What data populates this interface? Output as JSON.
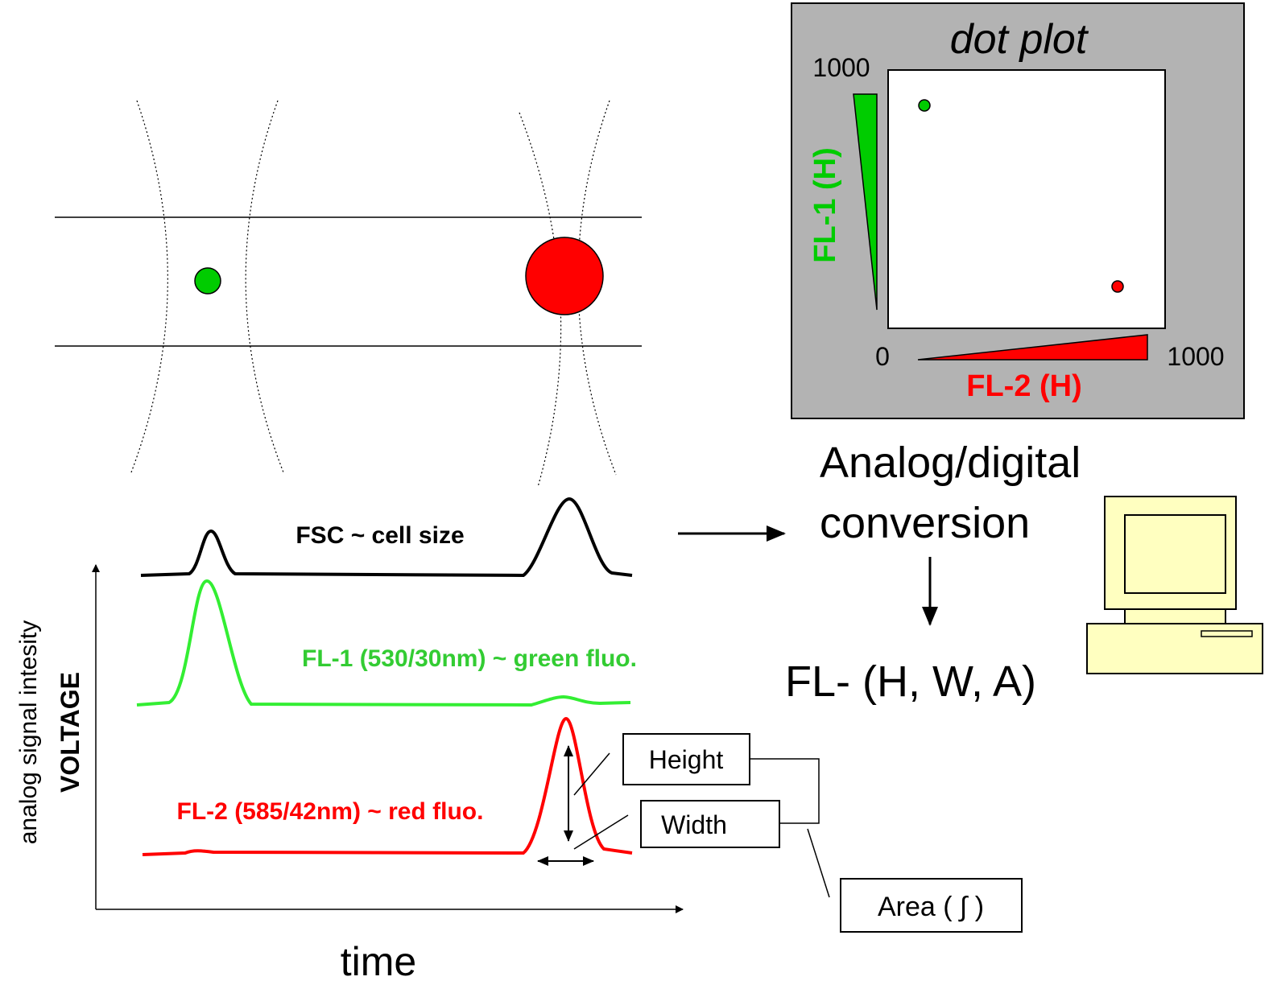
{
  "dot_plot": {
    "title": "dot plot",
    "y_max_label": "1000",
    "x_min_label": "0",
    "x_max_label": "1000",
    "y_axis_label": "FL-1 (H)",
    "x_axis_label": "FL-2 (H)"
  },
  "conversion": {
    "lines": [
      "Analog/digital",
      "conversion"
    ],
    "output": "FL- (H, W, A)"
  },
  "signals": {
    "fsc": "FSC ~ cell size",
    "fl1": "FL-1 (530/30nm) ~ green fluo.",
    "fl2": "FL-2 (585/42nm) ~ red fluo."
  },
  "parameters": {
    "height": "Height",
    "width": "Width",
    "area": "Area ( ∫ )"
  },
  "axes": {
    "y_label": "analog signal intesity",
    "y_label_bold": "VOLTAGE",
    "x_label": "time"
  }
}
